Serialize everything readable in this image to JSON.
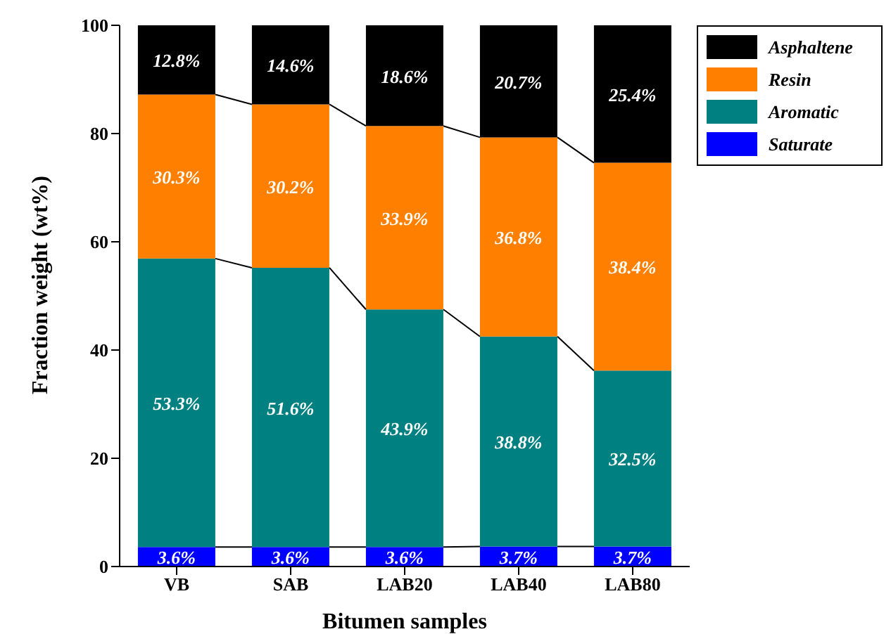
{
  "chart_data": {
    "type": "bar",
    "stacked": true,
    "xlabel": "Bitumen samples",
    "ylabel": "Fraction weight (wt%)",
    "categories": [
      "VB",
      "SAB",
      "LAB20",
      "LAB40",
      "LAB80"
    ],
    "series": [
      {
        "name": "Saturate",
        "color": "#0000ff",
        "values": [
          3.6,
          3.6,
          3.6,
          3.7,
          3.7
        ],
        "value_labels": [
          "3.6%",
          "3.6%",
          "3.6%",
          "3.7%",
          "3.7%"
        ]
      },
      {
        "name": "Aromatic",
        "color": "#008080",
        "values": [
          53.3,
          51.6,
          43.9,
          38.8,
          32.5
        ],
        "value_labels": [
          "53.3%",
          "51.6%",
          "43.9%",
          "38.8%",
          "32.5%"
        ]
      },
      {
        "name": "Resin",
        "color": "#ff8000",
        "values": [
          30.3,
          30.2,
          33.9,
          36.8,
          38.4
        ],
        "value_labels": [
          "30.3%",
          "30.2%",
          "33.9%",
          "36.8%",
          "38.4%"
        ]
      },
      {
        "name": "Asphaltene",
        "color": "#000000",
        "values": [
          12.8,
          14.6,
          18.6,
          20.7,
          25.4
        ],
        "value_labels": [
          "12.8%",
          "14.6%",
          "18.6%",
          "20.7%",
          "25.4%"
        ]
      }
    ],
    "ylim": [
      0,
      100
    ],
    "yticks": [
      0,
      20,
      40,
      60,
      80,
      100
    ],
    "grid": false,
    "legend": "top right"
  }
}
